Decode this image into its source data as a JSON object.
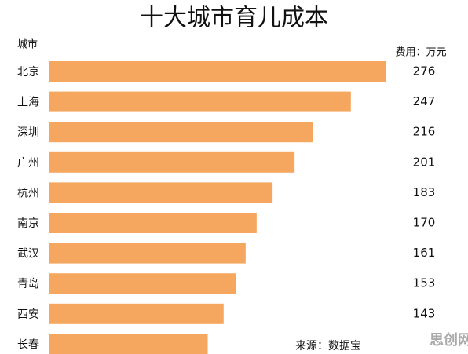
{
  "chart_data": {
    "type": "bar",
    "orientation": "horizontal",
    "title": "十大城市育儿成本",
    "category_axis_label": "城市",
    "unit_label": "费用：万元",
    "source": "来源：数据宝",
    "watermark": "思创网",
    "color": "#f5a760",
    "categories": [
      "北京",
      "上海",
      "深圳",
      "广州",
      "杭州",
      "南京",
      "武汉",
      "青岛",
      "西安",
      "长春"
    ],
    "values": [
      276,
      247,
      216,
      201,
      183,
      170,
      161,
      153,
      143,
      130
    ],
    "value_labels": [
      "276",
      "247",
      "216",
      "201",
      "183",
      "170",
      "161",
      "153",
      "143",
      null
    ]
  }
}
